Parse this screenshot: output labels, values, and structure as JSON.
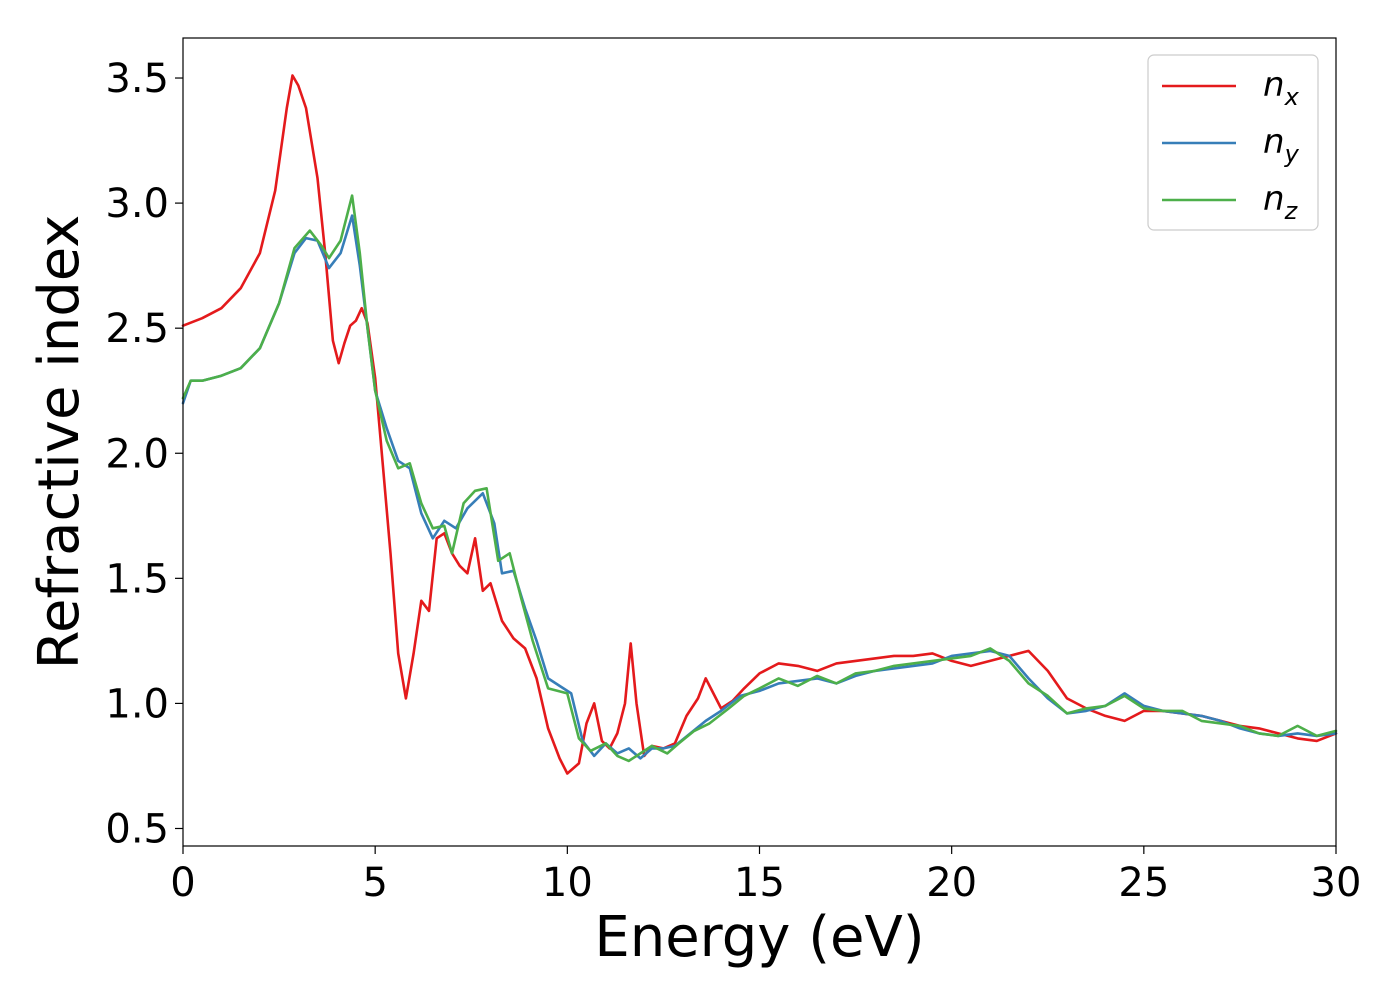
{
  "chart_data": {
    "type": "line",
    "xlabel": "Energy (eV)",
    "ylabel": "Refractive index",
    "xlim": [
      0,
      30
    ],
    "ylim": [
      0.43,
      3.66
    ],
    "xticks": [
      "0",
      "5",
      "10",
      "15",
      "20",
      "25",
      "30"
    ],
    "yticks": [
      "0.5",
      "1.0",
      "1.5",
      "2.0",
      "2.5",
      "3.0",
      "3.5"
    ],
    "legend_position": "upper-right",
    "grid": false,
    "series": [
      {
        "name": "n",
        "subscript": "x",
        "color": "#e41a1c",
        "points": [
          [
            0,
            2.51
          ],
          [
            0.5,
            2.54
          ],
          [
            1,
            2.58
          ],
          [
            1.5,
            2.66
          ],
          [
            2,
            2.8
          ],
          [
            2.4,
            3.05
          ],
          [
            2.7,
            3.38
          ],
          [
            2.85,
            3.51
          ],
          [
            3.0,
            3.47
          ],
          [
            3.2,
            3.38
          ],
          [
            3.5,
            3.1
          ],
          [
            3.7,
            2.8
          ],
          [
            3.9,
            2.45
          ],
          [
            4.05,
            2.36
          ],
          [
            4.2,
            2.44
          ],
          [
            4.35,
            2.51
          ],
          [
            4.5,
            2.53
          ],
          [
            4.65,
            2.58
          ],
          [
            4.8,
            2.52
          ],
          [
            5.0,
            2.3
          ],
          [
            5.2,
            1.95
          ],
          [
            5.4,
            1.6
          ],
          [
            5.6,
            1.2
          ],
          [
            5.8,
            1.02
          ],
          [
            6.0,
            1.2
          ],
          [
            6.2,
            1.41
          ],
          [
            6.4,
            1.37
          ],
          [
            6.6,
            1.66
          ],
          [
            6.8,
            1.68
          ],
          [
            7.0,
            1.6
          ],
          [
            7.2,
            1.55
          ],
          [
            7.4,
            1.52
          ],
          [
            7.6,
            1.66
          ],
          [
            7.8,
            1.45
          ],
          [
            8.0,
            1.48
          ],
          [
            8.3,
            1.33
          ],
          [
            8.6,
            1.26
          ],
          [
            8.9,
            1.22
          ],
          [
            9.2,
            1.1
          ],
          [
            9.5,
            0.9
          ],
          [
            9.8,
            0.78
          ],
          [
            10.0,
            0.72
          ],
          [
            10.3,
            0.76
          ],
          [
            10.5,
            0.92
          ],
          [
            10.7,
            1.0
          ],
          [
            10.9,
            0.85
          ],
          [
            11.1,
            0.82
          ],
          [
            11.3,
            0.88
          ],
          [
            11.5,
            1.0
          ],
          [
            11.65,
            1.24
          ],
          [
            11.8,
            1.0
          ],
          [
            12.0,
            0.79
          ],
          [
            12.2,
            0.83
          ],
          [
            12.5,
            0.82
          ],
          [
            12.8,
            0.84
          ],
          [
            13.1,
            0.95
          ],
          [
            13.4,
            1.02
          ],
          [
            13.6,
            1.1
          ],
          [
            13.8,
            1.04
          ],
          [
            14.0,
            0.98
          ],
          [
            14.3,
            1.01
          ],
          [
            14.6,
            1.06
          ],
          [
            15.0,
            1.12
          ],
          [
            15.5,
            1.16
          ],
          [
            16.0,
            1.15
          ],
          [
            16.5,
            1.13
          ],
          [
            17.0,
            1.16
          ],
          [
            17.5,
            1.17
          ],
          [
            18.0,
            1.18
          ],
          [
            18.5,
            1.19
          ],
          [
            19.0,
            1.19
          ],
          [
            19.5,
            1.2
          ],
          [
            20.0,
            1.17
          ],
          [
            20.5,
            1.15
          ],
          [
            21.0,
            1.17
          ],
          [
            21.5,
            1.19
          ],
          [
            22.0,
            1.21
          ],
          [
            22.5,
            1.13
          ],
          [
            23.0,
            1.02
          ],
          [
            23.5,
            0.98
          ],
          [
            24.0,
            0.95
          ],
          [
            24.5,
            0.93
          ],
          [
            25.0,
            0.97
          ],
          [
            25.5,
            0.97
          ],
          [
            26.0,
            0.96
          ],
          [
            26.5,
            0.95
          ],
          [
            27.0,
            0.93
          ],
          [
            27.5,
            0.91
          ],
          [
            28.0,
            0.9
          ],
          [
            28.5,
            0.88
          ],
          [
            29.0,
            0.86
          ],
          [
            29.5,
            0.85
          ],
          [
            30.0,
            0.88
          ]
        ]
      },
      {
        "name": "n",
        "subscript": "y",
        "color": "#377eb8",
        "points": [
          [
            0,
            2.2
          ],
          [
            0.2,
            2.29
          ],
          [
            0.5,
            2.29
          ],
          [
            1,
            2.31
          ],
          [
            1.5,
            2.34
          ],
          [
            2,
            2.42
          ],
          [
            2.5,
            2.6
          ],
          [
            2.9,
            2.8
          ],
          [
            3.2,
            2.86
          ],
          [
            3.5,
            2.85
          ],
          [
            3.8,
            2.74
          ],
          [
            4.1,
            2.8
          ],
          [
            4.4,
            2.95
          ],
          [
            4.6,
            2.75
          ],
          [
            4.8,
            2.5
          ],
          [
            5.0,
            2.25
          ],
          [
            5.3,
            2.1
          ],
          [
            5.6,
            1.97
          ],
          [
            5.9,
            1.94
          ],
          [
            6.2,
            1.76
          ],
          [
            6.5,
            1.66
          ],
          [
            6.8,
            1.73
          ],
          [
            7.1,
            1.7
          ],
          [
            7.4,
            1.78
          ],
          [
            7.8,
            1.84
          ],
          [
            8.1,
            1.72
          ],
          [
            8.3,
            1.52
          ],
          [
            8.6,
            1.53
          ],
          [
            8.9,
            1.38
          ],
          [
            9.2,
            1.25
          ],
          [
            9.5,
            1.1
          ],
          [
            9.8,
            1.07
          ],
          [
            10.1,
            1.04
          ],
          [
            10.4,
            0.85
          ],
          [
            10.7,
            0.79
          ],
          [
            11.0,
            0.84
          ],
          [
            11.3,
            0.8
          ],
          [
            11.6,
            0.82
          ],
          [
            11.9,
            0.78
          ],
          [
            12.2,
            0.82
          ],
          [
            12.5,
            0.82
          ],
          [
            12.8,
            0.83
          ],
          [
            13.2,
            0.88
          ],
          [
            13.6,
            0.93
          ],
          [
            14.0,
            0.97
          ],
          [
            14.5,
            1.03
          ],
          [
            15.0,
            1.05
          ],
          [
            15.5,
            1.08
          ],
          [
            16.0,
            1.09
          ],
          [
            16.5,
            1.1
          ],
          [
            17.0,
            1.08
          ],
          [
            17.5,
            1.11
          ],
          [
            18.0,
            1.13
          ],
          [
            18.5,
            1.14
          ],
          [
            19.0,
            1.15
          ],
          [
            19.5,
            1.16
          ],
          [
            20.0,
            1.19
          ],
          [
            20.5,
            1.2
          ],
          [
            21.0,
            1.21
          ],
          [
            21.5,
            1.19
          ],
          [
            22.0,
            1.1
          ],
          [
            22.5,
            1.02
          ],
          [
            23.0,
            0.96
          ],
          [
            23.5,
            0.97
          ],
          [
            24.0,
            0.99
          ],
          [
            24.5,
            1.04
          ],
          [
            25.0,
            0.99
          ],
          [
            25.5,
            0.97
          ],
          [
            26.0,
            0.96
          ],
          [
            26.5,
            0.95
          ],
          [
            27.0,
            0.93
          ],
          [
            27.5,
            0.9
          ],
          [
            28.0,
            0.88
          ],
          [
            28.5,
            0.87
          ],
          [
            29.0,
            0.88
          ],
          [
            29.5,
            0.87
          ],
          [
            30.0,
            0.88
          ]
        ]
      },
      {
        "name": "n",
        "subscript": "z",
        "color": "#4daf4a",
        "points": [
          [
            0,
            2.22
          ],
          [
            0.2,
            2.29
          ],
          [
            0.5,
            2.29
          ],
          [
            1,
            2.31
          ],
          [
            1.5,
            2.34
          ],
          [
            2,
            2.42
          ],
          [
            2.5,
            2.6
          ],
          [
            2.9,
            2.82
          ],
          [
            3.3,
            2.89
          ],
          [
            3.6,
            2.83
          ],
          [
            3.8,
            2.78
          ],
          [
            4.1,
            2.85
          ],
          [
            4.4,
            3.03
          ],
          [
            4.6,
            2.8
          ],
          [
            4.8,
            2.5
          ],
          [
            5.0,
            2.25
          ],
          [
            5.3,
            2.05
          ],
          [
            5.6,
            1.94
          ],
          [
            5.9,
            1.96
          ],
          [
            6.2,
            1.8
          ],
          [
            6.5,
            1.7
          ],
          [
            6.8,
            1.71
          ],
          [
            7.0,
            1.6
          ],
          [
            7.3,
            1.8
          ],
          [
            7.6,
            1.85
          ],
          [
            7.9,
            1.86
          ],
          [
            8.2,
            1.57
          ],
          [
            8.5,
            1.6
          ],
          [
            8.8,
            1.42
          ],
          [
            9.1,
            1.25
          ],
          [
            9.5,
            1.06
          ],
          [
            10.0,
            1.04
          ],
          [
            10.3,
            0.86
          ],
          [
            10.6,
            0.81
          ],
          [
            11.0,
            0.84
          ],
          [
            11.3,
            0.79
          ],
          [
            11.6,
            0.77
          ],
          [
            11.9,
            0.8
          ],
          [
            12.2,
            0.83
          ],
          [
            12.6,
            0.8
          ],
          [
            12.9,
            0.84
          ],
          [
            13.3,
            0.89
          ],
          [
            13.7,
            0.92
          ],
          [
            14.2,
            0.98
          ],
          [
            14.6,
            1.03
          ],
          [
            15.0,
            1.06
          ],
          [
            15.5,
            1.1
          ],
          [
            16.0,
            1.07
          ],
          [
            16.5,
            1.11
          ],
          [
            17.0,
            1.08
          ],
          [
            17.5,
            1.12
          ],
          [
            18.0,
            1.13
          ],
          [
            18.5,
            1.15
          ],
          [
            19.0,
            1.16
          ],
          [
            19.5,
            1.17
          ],
          [
            20.0,
            1.18
          ],
          [
            20.5,
            1.19
          ],
          [
            21.0,
            1.22
          ],
          [
            21.5,
            1.17
          ],
          [
            22.0,
            1.08
          ],
          [
            22.5,
            1.03
          ],
          [
            23.0,
            0.96
          ],
          [
            23.5,
            0.98
          ],
          [
            24.0,
            0.99
          ],
          [
            24.5,
            1.03
          ],
          [
            25.0,
            0.98
          ],
          [
            25.5,
            0.97
          ],
          [
            26.0,
            0.97
          ],
          [
            26.5,
            0.93
          ],
          [
            27.0,
            0.92
          ],
          [
            27.5,
            0.91
          ],
          [
            28.0,
            0.88
          ],
          [
            28.5,
            0.87
          ],
          [
            29.0,
            0.91
          ],
          [
            29.5,
            0.87
          ],
          [
            30.0,
            0.89
          ]
        ]
      }
    ]
  }
}
